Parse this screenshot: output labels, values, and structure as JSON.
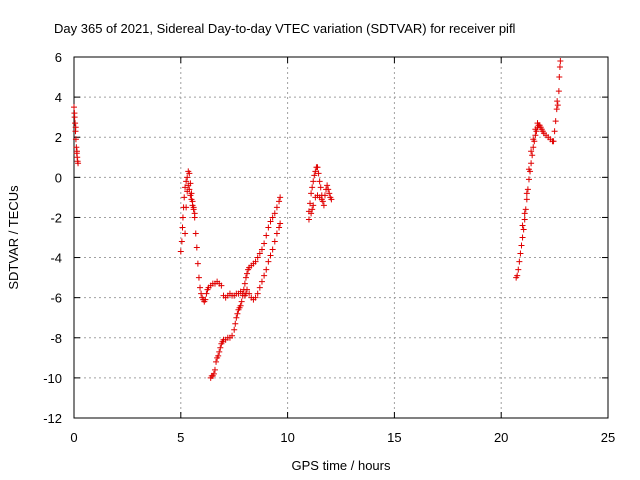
{
  "chart_data": {
    "type": "scatter",
    "title": "Day 365 of 2021, Sidereal Day-to-day VTEC variation (SDTVAR) for receiver pifl",
    "xlabel": "GPS time / hours",
    "ylabel": "SDTVAR / TECUs",
    "xlim": [
      0,
      25
    ],
    "ylim": [
      -12,
      6
    ],
    "xticks": [
      "0",
      "5",
      "10",
      "15",
      "20",
      "25"
    ],
    "yticks": [
      "-12",
      "-10",
      "-8",
      "-6",
      "-4",
      "-2",
      "0",
      "2",
      "4",
      "6"
    ],
    "grid": true,
    "marker": "plus",
    "color": "#e00000",
    "series": [
      {
        "points": [
          [
            0.0,
            3.5
          ],
          [
            0.03,
            3.0
          ],
          [
            0.05,
            2.7
          ],
          [
            0.07,
            2.3
          ],
          [
            0.09,
            1.9
          ],
          [
            0.11,
            1.5
          ],
          [
            0.13,
            1.2
          ],
          [
            0.15,
            1.0
          ],
          [
            0.17,
            0.8
          ],
          [
            0.19,
            0.7
          ],
          [
            0.02,
            3.2
          ],
          [
            0.08,
            2.5
          ],
          [
            0.14,
            1.3
          ],
          [
            5.0,
            -3.7
          ],
          [
            5.05,
            -3.2
          ],
          [
            5.08,
            -2.5
          ],
          [
            5.1,
            -2.0
          ],
          [
            5.13,
            -1.5
          ],
          [
            5.16,
            -1.0
          ],
          [
            5.2,
            -0.5
          ],
          [
            5.25,
            -0.2
          ],
          [
            5.3,
            0.0
          ],
          [
            5.35,
            0.3
          ],
          [
            5.4,
            0.2
          ],
          [
            5.45,
            -0.3
          ],
          [
            5.5,
            -0.8
          ],
          [
            5.55,
            -1.2
          ],
          [
            5.6,
            -1.5
          ],
          [
            5.65,
            -2.0
          ],
          [
            5.7,
            -2.8
          ],
          [
            5.75,
            -3.5
          ],
          [
            5.8,
            -4.3
          ],
          [
            5.85,
            -5.0
          ],
          [
            5.9,
            -5.5
          ],
          [
            5.95,
            -5.8
          ],
          [
            6.0,
            -6.0
          ],
          [
            6.05,
            -6.1
          ],
          [
            6.1,
            -6.2
          ],
          [
            6.15,
            -6.1
          ],
          [
            6.2,
            -5.8
          ],
          [
            6.25,
            -5.6
          ],
          [
            6.3,
            -5.5
          ],
          [
            5.2,
            -2.8
          ],
          [
            5.25,
            -1.5
          ],
          [
            5.3,
            -0.7
          ],
          [
            5.35,
            -0.4
          ],
          [
            5.4,
            -0.6
          ],
          [
            5.45,
            -0.9
          ],
          [
            5.5,
            -1.1
          ],
          [
            5.55,
            -1.4
          ],
          [
            5.6,
            -1.6
          ],
          [
            5.65,
            -1.8
          ],
          [
            6.4,
            -5.4
          ],
          [
            6.5,
            -5.3
          ],
          [
            6.6,
            -5.3
          ],
          [
            6.7,
            -5.2
          ],
          [
            6.8,
            -5.3
          ],
          [
            6.9,
            -5.4
          ],
          [
            7.0,
            -5.9
          ],
          [
            7.1,
            -6.0
          ],
          [
            7.2,
            -5.9
          ],
          [
            7.3,
            -5.8
          ],
          [
            7.4,
            -5.9
          ],
          [
            7.5,
            -5.9
          ],
          [
            7.6,
            -5.8
          ],
          [
            7.7,
            -5.8
          ],
          [
            7.8,
            -5.7
          ],
          [
            7.9,
            -5.8
          ],
          [
            8.0,
            -5.9
          ],
          [
            8.05,
            -5.8
          ],
          [
            6.4,
            -10.0
          ],
          [
            6.45,
            -9.9
          ],
          [
            6.5,
            -9.9
          ],
          [
            6.55,
            -9.8
          ],
          [
            6.6,
            -9.6
          ],
          [
            6.65,
            -9.2
          ],
          [
            6.7,
            -9.0
          ],
          [
            6.75,
            -8.9
          ],
          [
            6.8,
            -8.7
          ],
          [
            6.85,
            -8.5
          ],
          [
            6.9,
            -8.3
          ],
          [
            6.95,
            -8.2
          ],
          [
            7.0,
            -8.1
          ],
          [
            7.1,
            -8.1
          ],
          [
            7.2,
            -8.0
          ],
          [
            7.3,
            -8.0
          ],
          [
            7.4,
            -7.9
          ],
          [
            7.5,
            -7.6
          ],
          [
            7.55,
            -7.3
          ],
          [
            7.6,
            -7.0
          ],
          [
            7.65,
            -6.8
          ],
          [
            7.7,
            -6.6
          ],
          [
            7.75,
            -6.5
          ],
          [
            7.8,
            -6.4
          ],
          [
            7.85,
            -6.2
          ],
          [
            7.9,
            -5.9
          ],
          [
            7.95,
            -5.6
          ],
          [
            8.0,
            -5.3
          ],
          [
            8.05,
            -5.0
          ],
          [
            8.1,
            -4.8
          ],
          [
            8.15,
            -4.6
          ],
          [
            8.2,
            -4.5
          ],
          [
            8.3,
            -4.4
          ],
          [
            8.4,
            -4.3
          ],
          [
            8.5,
            -4.2
          ],
          [
            8.6,
            -4.0
          ],
          [
            8.7,
            -3.8
          ],
          [
            8.8,
            -3.6
          ],
          [
            8.9,
            -3.3
          ],
          [
            9.0,
            -2.9
          ],
          [
            9.1,
            -2.5
          ],
          [
            9.2,
            -2.2
          ],
          [
            9.3,
            -2.0
          ],
          [
            9.4,
            -1.8
          ],
          [
            9.5,
            -1.5
          ],
          [
            9.6,
            -1.2
          ],
          [
            9.65,
            -1.0
          ],
          [
            8.1,
            -5.6
          ],
          [
            8.2,
            -5.8
          ],
          [
            8.3,
            -6.0
          ],
          [
            8.4,
            -6.1
          ],
          [
            8.5,
            -6.0
          ],
          [
            8.6,
            -5.8
          ],
          [
            8.7,
            -5.5
          ],
          [
            8.8,
            -5.2
          ],
          [
            8.9,
            -4.9
          ],
          [
            9.0,
            -4.6
          ],
          [
            9.1,
            -4.2
          ],
          [
            9.2,
            -3.9
          ],
          [
            9.3,
            -3.6
          ],
          [
            9.4,
            -3.2
          ],
          [
            9.5,
            -2.8
          ],
          [
            9.6,
            -2.5
          ],
          [
            9.65,
            -2.3
          ],
          [
            11.0,
            -2.1
          ],
          [
            11.0,
            -1.7
          ],
          [
            11.05,
            -1.3
          ],
          [
            11.1,
            -0.8
          ],
          [
            11.15,
            -0.5
          ],
          [
            11.2,
            -0.2
          ],
          [
            11.25,
            0.1
          ],
          [
            11.3,
            0.3
          ],
          [
            11.35,
            0.5
          ],
          [
            11.4,
            0.5
          ],
          [
            11.45,
            0.2
          ],
          [
            11.5,
            -0.2
          ],
          [
            11.55,
            -0.5
          ],
          [
            11.6,
            -0.9
          ],
          [
            11.65,
            -1.2
          ],
          [
            11.7,
            -1.4
          ],
          [
            11.75,
            -0.9
          ],
          [
            11.8,
            -0.6
          ],
          [
            11.85,
            -0.4
          ],
          [
            11.9,
            -0.6
          ],
          [
            11.95,
            -0.8
          ],
          [
            12.0,
            -1.0
          ],
          [
            12.05,
            -1.1
          ],
          [
            11.1,
            -1.8
          ],
          [
            11.2,
            -1.4
          ],
          [
            11.3,
            -1.0
          ],
          [
            11.4,
            -0.9
          ],
          [
            11.5,
            -1.0
          ],
          [
            11.6,
            -1.1
          ],
          [
            11.15,
            -1.6
          ],
          [
            20.7,
            -5.0
          ],
          [
            20.75,
            -4.9
          ],
          [
            20.8,
            -4.6
          ],
          [
            20.85,
            -4.2
          ],
          [
            20.9,
            -3.8
          ],
          [
            20.95,
            -3.4
          ],
          [
            21.0,
            -3.0
          ],
          [
            21.05,
            -2.6
          ],
          [
            21.1,
            -2.1
          ],
          [
            21.15,
            -1.6
          ],
          [
            21.2,
            -1.1
          ],
          [
            21.25,
            -0.6
          ],
          [
            21.3,
            -0.1
          ],
          [
            21.35,
            0.3
          ],
          [
            21.4,
            0.7
          ],
          [
            21.45,
            1.1
          ],
          [
            21.5,
            1.5
          ],
          [
            21.55,
            1.8
          ],
          [
            21.6,
            2.1
          ],
          [
            21.65,
            2.3
          ],
          [
            21.7,
            2.5
          ],
          [
            21.75,
            2.6
          ],
          [
            21.8,
            2.6
          ],
          [
            21.85,
            2.5
          ],
          [
            21.9,
            2.4
          ],
          [
            21.95,
            2.3
          ],
          [
            22.0,
            2.2
          ],
          [
            22.1,
            2.1
          ],
          [
            22.2,
            2.0
          ],
          [
            22.3,
            1.9
          ],
          [
            22.4,
            1.8
          ],
          [
            22.45,
            1.8
          ],
          [
            22.5,
            2.3
          ],
          [
            22.55,
            2.8
          ],
          [
            22.6,
            3.4
          ],
          [
            22.62,
            3.8
          ],
          [
            22.65,
            3.6
          ],
          [
            22.7,
            4.3
          ],
          [
            22.72,
            5.0
          ],
          [
            22.75,
            5.5
          ],
          [
            22.77,
            5.8
          ],
          [
            21.0,
            -2.4
          ],
          [
            21.1,
            -1.8
          ],
          [
            21.2,
            -0.8
          ],
          [
            21.3,
            0.4
          ],
          [
            21.4,
            1.3
          ],
          [
            21.5,
            1.9
          ],
          [
            21.6,
            2.4
          ],
          [
            21.7,
            2.7
          ]
        ]
      }
    ]
  }
}
